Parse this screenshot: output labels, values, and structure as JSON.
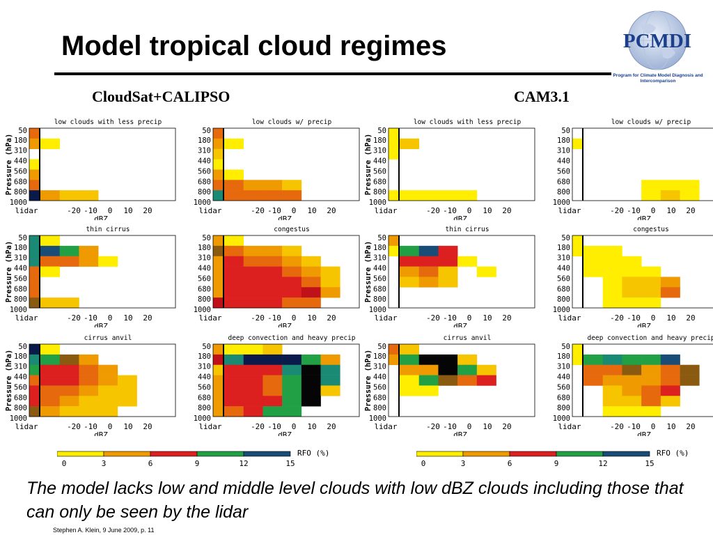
{
  "slide": {
    "title": "Model tropical cloud regimes",
    "caption": "The model lacks low and middle level clouds with low dBZ clouds including those that can only be seen by the lidar",
    "footer": "Stephen A. Klein, 9 June 2009, p. 11"
  },
  "logo": {
    "name": "PCMDI",
    "subtitle": "Program for Climate Model Diagnosis and Intercomparison"
  },
  "sections": [
    "CloudSat+CALIPSO",
    "CAM3.1"
  ],
  "colors": {
    "y": "#ffee00",
    "yo": "#f7c400",
    "o": "#ee9a00",
    "do": "#e66a0d",
    "r": "#dc1f1f",
    "dr": "#c0101a",
    "ol": "#8a5a10",
    "g": "#22a046",
    "dg": "#0f8a45",
    "t": "#1a8a74",
    "b": "#1a4c78",
    "n": "#0a1a4a",
    "k": "#050505"
  },
  "axis": {
    "pressure_label": "Pressure (hPa)",
    "pressure_ticks": [
      "50",
      "180",
      "310",
      "440",
      "560",
      "680",
      "800",
      "1000"
    ],
    "x_ticks": [
      "lidar",
      "-20",
      "-10",
      "0",
      "10",
      "20"
    ],
    "x_label": "dBZ"
  },
  "colorbar": {
    "label": "RFO (%)",
    "ticks": [
      "0",
      "3",
      "6",
      "9",
      "12",
      "15"
    ],
    "colors": [
      "#ffee00",
      "#ee9a00",
      "#dc1f1f",
      "#22a046",
      "#1a4c78"
    ]
  },
  "panels": [
    {
      "group": 0,
      "row": 0,
      "col": 0,
      "title": "low clouds with less precip",
      "show_ylabel": true,
      "lidar": [
        "do",
        "o",
        "",
        "y",
        "o",
        "do",
        "n"
      ],
      "grid": [
        [
          "",
          "",
          "",
          "",
          "",
          "",
          ""
        ],
        [
          "y",
          "",
          "",
          "",
          "",
          "",
          ""
        ],
        [
          "",
          "",
          "",
          "",
          "",
          "",
          ""
        ],
        [
          "",
          "",
          "",
          "",
          "",
          "",
          ""
        ],
        [
          "",
          "",
          "",
          "",
          "",
          "",
          ""
        ],
        [
          "",
          "",
          "",
          "",
          "",
          "",
          ""
        ],
        [
          "o",
          "yo",
          "yo",
          "",
          "",
          "",
          ""
        ]
      ]
    },
    {
      "group": 0,
      "row": 0,
      "col": 1,
      "title": "low clouds w/ precip",
      "show_ylabel": false,
      "lidar": [
        "do",
        "o",
        "yo",
        "y",
        "o",
        "do",
        "t"
      ],
      "grid": [
        [
          "",
          "",
          "",
          "",
          "",
          "",
          ""
        ],
        [
          "y",
          "",
          "",
          "",
          "",
          "",
          ""
        ],
        [
          "",
          "",
          "",
          "",
          "",
          "",
          ""
        ],
        [
          "",
          "",
          "",
          "",
          "",
          "",
          ""
        ],
        [
          "y",
          "",
          "",
          "",
          "",
          "",
          ""
        ],
        [
          "do",
          "o",
          "o",
          "yo",
          "",
          "",
          ""
        ],
        [
          "do",
          "do",
          "do",
          "do",
          "",
          "",
          ""
        ]
      ]
    },
    {
      "group": 0,
      "row": 1,
      "col": 0,
      "title": "thin cirrus",
      "show_ylabel": true,
      "lidar": [
        "t",
        "t",
        "t",
        "do",
        "do",
        "do",
        "ol"
      ],
      "grid": [
        [
          "y",
          "",
          "",
          "",
          "",
          "",
          ""
        ],
        [
          "b",
          "g",
          "o",
          "",
          "",
          "",
          ""
        ],
        [
          "do",
          "do",
          "o",
          "y",
          "",
          "",
          ""
        ],
        [
          "y",
          "",
          "",
          "",
          "",
          "",
          ""
        ],
        [
          "",
          "",
          "",
          "",
          "",
          "",
          ""
        ],
        [
          "",
          "",
          "",
          "",
          "",
          "",
          ""
        ],
        [
          "yo",
          "yo",
          "",
          "",
          "",
          "",
          ""
        ]
      ]
    },
    {
      "group": 0,
      "row": 1,
      "col": 1,
      "title": "congestus",
      "show_ylabel": false,
      "lidar": [
        "o",
        "ol",
        "o",
        "o",
        "o",
        "o",
        "dr"
      ],
      "grid": [
        [
          "y",
          "",
          "",
          "",
          "",
          "",
          ""
        ],
        [
          "do",
          "o",
          "o",
          "yo",
          "",
          "",
          ""
        ],
        [
          "r",
          "do",
          "do",
          "o",
          "yo",
          "",
          ""
        ],
        [
          "r",
          "r",
          "r",
          "do",
          "o",
          "yo",
          ""
        ],
        [
          "r",
          "r",
          "r",
          "r",
          "do",
          "yo",
          ""
        ],
        [
          "r",
          "r",
          "r",
          "r",
          "dr",
          "o",
          ""
        ],
        [
          "r",
          "r",
          "r",
          "do",
          "do",
          "",
          ""
        ]
      ]
    },
    {
      "group": 0,
      "row": 2,
      "col": 0,
      "title": "cirrus anvil",
      "show_ylabel": true,
      "lidar": [
        "n",
        "t",
        "g",
        "do",
        "r",
        "r",
        "ol"
      ],
      "grid": [
        [
          "y",
          "",
          "",
          "",
          "",
          "",
          ""
        ],
        [
          "g",
          "ol",
          "o",
          "",
          "",
          "",
          ""
        ],
        [
          "r",
          "r",
          "do",
          "o",
          "",
          "",
          ""
        ],
        [
          "r",
          "r",
          "do",
          "o",
          "yo",
          "",
          ""
        ],
        [
          "do",
          "do",
          "o",
          "yo",
          "yo",
          "",
          ""
        ],
        [
          "do",
          "o",
          "yo",
          "yo",
          "yo",
          "",
          ""
        ],
        [
          "o",
          "yo",
          "yo",
          "yo",
          "",
          "",
          ""
        ]
      ]
    },
    {
      "group": 0,
      "row": 2,
      "col": 1,
      "title": "deep convection and heavy precip",
      "show_ylabel": false,
      "lidar": [
        "o",
        "dr",
        "yo",
        "o",
        "o",
        "o",
        "o"
      ],
      "grid": [
        [
          "y",
          "y",
          "yo",
          "",
          "",
          "",
          ""
        ],
        [
          "t",
          "n",
          "n",
          "n",
          "g",
          "o",
          ""
        ],
        [
          "r",
          "r",
          "r",
          "t",
          "k",
          "t",
          ""
        ],
        [
          "r",
          "r",
          "do",
          "g",
          "k",
          "t",
          ""
        ],
        [
          "r",
          "r",
          "do",
          "g",
          "k",
          "yo",
          ""
        ],
        [
          "r",
          "r",
          "r",
          "g",
          "k",
          "",
          ""
        ],
        [
          "do",
          "r",
          "g",
          "g",
          "",
          "",
          ""
        ]
      ]
    },
    {
      "group": 1,
      "row": 0,
      "col": 0,
      "title": "low clouds with less precip",
      "show_ylabel": true,
      "lidar": [
        "y",
        "y",
        "y",
        "",
        "",
        "",
        "y"
      ],
      "grid": [
        [
          "",
          "",
          "",
          "",
          "",
          "",
          ""
        ],
        [
          "yo",
          "",
          "",
          "",
          "",
          "",
          ""
        ],
        [
          "",
          "",
          "",
          "",
          "",
          "",
          ""
        ],
        [
          "",
          "",
          "",
          "",
          "",
          "",
          ""
        ],
        [
          "",
          "",
          "",
          "",
          "",
          "",
          ""
        ],
        [
          "",
          "",
          "",
          "",
          "",
          "",
          ""
        ],
        [
          "y",
          "y",
          "y",
          "y",
          "",
          "",
          ""
        ]
      ]
    },
    {
      "group": 1,
      "row": 0,
      "col": 1,
      "title": "low clouds w/ precip",
      "show_ylabel": false,
      "lidar": [
        "",
        "y",
        "",
        "",
        "",
        "",
        ""
      ],
      "grid": [
        [
          "",
          "",
          "",
          "",
          "",
          "",
          ""
        ],
        [
          "",
          "",
          "",
          "",
          "",
          "",
          ""
        ],
        [
          "",
          "",
          "",
          "",
          "",
          "",
          ""
        ],
        [
          "",
          "",
          "",
          "",
          "",
          "",
          ""
        ],
        [
          "",
          "",
          "",
          "",
          "",
          "",
          ""
        ],
        [
          "",
          "",
          "",
          "y",
          "y",
          "y",
          ""
        ],
        [
          "",
          "",
          "",
          "y",
          "yo",
          "y",
          ""
        ]
      ]
    },
    {
      "group": 1,
      "row": 1,
      "col": 0,
      "title": "thin cirrus",
      "show_ylabel": true,
      "lidar": [
        "o",
        "y",
        "",
        "",
        "",
        "",
        ""
      ],
      "grid": [
        [
          "",
          "",
          "",
          "",
          "",
          "",
          ""
        ],
        [
          "g",
          "b",
          "r",
          "",
          "",
          "",
          ""
        ],
        [
          "r",
          "r",
          "r",
          "y",
          "",
          "",
          ""
        ],
        [
          "o",
          "do",
          "yo",
          "",
          "y",
          "",
          ""
        ],
        [
          "yo",
          "o",
          "yo",
          "",
          "",
          "",
          ""
        ],
        [
          "",
          "",
          "",
          "",
          "",
          "",
          ""
        ],
        [
          "",
          "",
          "",
          "",
          "",
          "",
          ""
        ]
      ]
    },
    {
      "group": 1,
      "row": 1,
      "col": 1,
      "title": "congestus",
      "show_ylabel": false,
      "lidar": [
        "y",
        "y",
        "",
        "",
        "",
        "",
        ""
      ],
      "grid": [
        [
          "",
          "",
          "",
          "",
          "",
          "",
          ""
        ],
        [
          "y",
          "y",
          "",
          "",
          "",
          "",
          ""
        ],
        [
          "y",
          "y",
          "y",
          "",
          "",
          "",
          ""
        ],
        [
          "y",
          "y",
          "y",
          "y",
          "",
          "",
          ""
        ],
        [
          "",
          "y",
          "yo",
          "yo",
          "o",
          "",
          ""
        ],
        [
          "",
          "y",
          "yo",
          "yo",
          "do",
          "",
          ""
        ],
        [
          "",
          "y",
          "y",
          "y",
          "",
          "",
          ""
        ]
      ]
    },
    {
      "group": 1,
      "row": 2,
      "col": 0,
      "title": "cirrus anvil",
      "show_ylabel": true,
      "lidar": [
        "do",
        "o",
        "",
        "",
        "",
        "",
        ""
      ],
      "grid": [
        [
          "yo",
          "",
          "",
          "",
          "",
          "",
          ""
        ],
        [
          "g",
          "k",
          "k",
          "yo",
          "",
          "",
          ""
        ],
        [
          "o",
          "o",
          "k",
          "g",
          "yo",
          "",
          ""
        ],
        [
          "y",
          "g",
          "ol",
          "do",
          "r",
          "",
          ""
        ],
        [
          "y",
          "y",
          "",
          "",
          "",
          "",
          ""
        ],
        [
          "",
          "",
          "",
          "",
          "",
          "",
          ""
        ],
        [
          "",
          "",
          "",
          "",
          "",
          "",
          ""
        ]
      ]
    },
    {
      "group": 1,
      "row": 2,
      "col": 1,
      "title": "deep convection and heavy precip",
      "show_ylabel": false,
      "lidar": [
        "y",
        "y",
        "",
        "",
        "",
        "",
        ""
      ],
      "grid": [
        [
          "",
          "",
          "",
          "",
          "",
          "",
          ""
        ],
        [
          "g",
          "t",
          "g",
          "g",
          "b",
          "",
          ""
        ],
        [
          "do",
          "do",
          "ol",
          "o",
          "do",
          "ol",
          ""
        ],
        [
          "do",
          "o",
          "o",
          "o",
          "do",
          "ol",
          ""
        ],
        [
          "",
          "yo",
          "o",
          "do",
          "r",
          "",
          ""
        ],
        [
          "",
          "yo",
          "yo",
          "do",
          "yo",
          "",
          ""
        ],
        [
          "",
          "y",
          "y",
          "y",
          "",
          "",
          ""
        ]
      ]
    }
  ]
}
